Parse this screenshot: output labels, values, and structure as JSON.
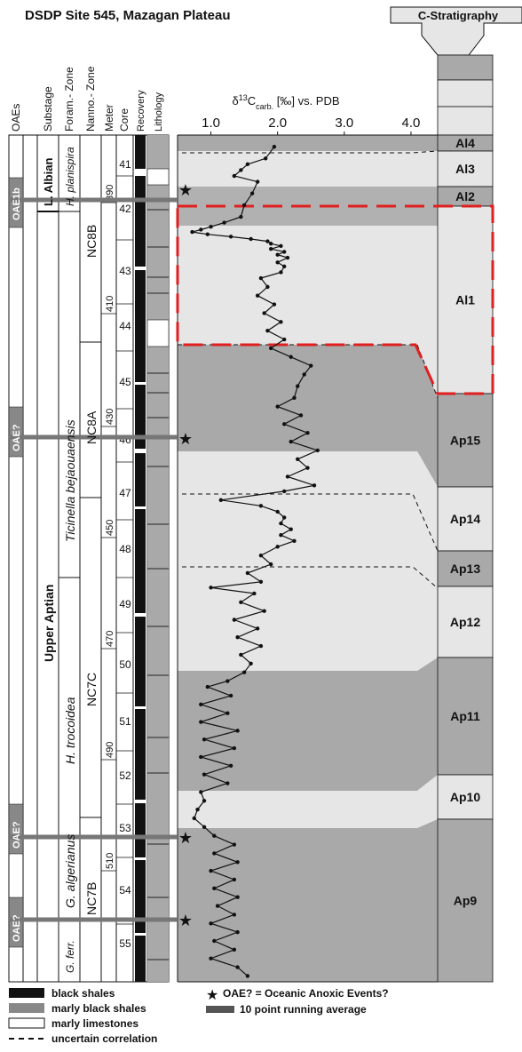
{
  "title": "DSDP Site 545, Mazagan Plateau",
  "strat_header": "C-Stratigraphy",
  "column_headers": {
    "oaes": "OAEs",
    "substage": "Substage",
    "foram": "Foram.- Zone",
    "nanno": "Nanno.- Zone",
    "meter": "Meter",
    "core": "Core",
    "recovery": "Recovery",
    "lithology": "Lithology"
  },
  "oae_labels": [
    "OAE1b",
    "OAE?",
    "OAE?",
    "OAE?"
  ],
  "substages": [
    "L. Albian",
    "Upper Aptian"
  ],
  "foram_zones": [
    "H. planispira",
    "Ticinella bejaouaensis",
    "H. trocoidea",
    "G. algerianus",
    "G. ferr."
  ],
  "nanno_zones": [
    "NC8B",
    "NC8A",
    "NC7C",
    "NC7B"
  ],
  "meters": [
    "390",
    "410",
    "430",
    "450",
    "470",
    "490",
    "510"
  ],
  "cores": [
    "41",
    "42",
    "43",
    "44",
    "45",
    "46",
    "47",
    "48",
    "49",
    "50",
    "51",
    "52",
    "53",
    "54",
    "55"
  ],
  "chart_data": {
    "type": "line",
    "xlabel_main": "δ",
    "xlabel_sup": "13",
    "xlabel_c": "C",
    "xlabel_sub": "carb.",
    "xlabel_unit": " [‰] vs. PDB",
    "xticks": [
      "1.0",
      "2.0",
      "3.0",
      "4.0"
    ],
    "xlim": [
      0.5,
      4.4
    ],
    "ylim": [
      375,
      520
    ],
    "series": [
      {
        "points": [
          [
            1.95,
            377
          ],
          [
            1.82,
            379
          ],
          [
            1.55,
            380
          ],
          [
            1.45,
            381
          ],
          [
            1.35,
            382
          ],
          [
            1.7,
            383
          ],
          [
            1.62,
            385
          ],
          [
            1.5,
            387
          ],
          [
            1.45,
            389
          ],
          [
            1.2,
            390
          ],
          [
            1.0,
            390.7
          ],
          [
            0.85,
            391.2
          ],
          [
            0.72,
            391.6
          ],
          [
            0.95,
            392
          ],
          [
            1.3,
            392.4
          ],
          [
            1.6,
            392.8
          ],
          [
            1.85,
            393.2
          ],
          [
            1.9,
            393.6
          ],
          [
            2.05,
            394
          ],
          [
            1.9,
            394.5
          ],
          [
            2.1,
            395
          ],
          [
            2.0,
            395.5
          ],
          [
            2.15,
            396
          ],
          [
            2.0,
            396.8
          ],
          [
            2.1,
            397.5
          ],
          [
            2.05,
            398.5
          ],
          [
            1.75,
            399.5
          ],
          [
            1.85,
            401
          ],
          [
            1.7,
            402.5
          ],
          [
            1.95,
            404
          ],
          [
            1.8,
            405.5
          ],
          [
            2.05,
            407
          ],
          [
            1.85,
            408.5
          ],
          [
            2.1,
            410
          ],
          [
            1.9,
            411.5
          ],
          [
            2.2,
            413
          ],
          [
            2.5,
            414.5
          ],
          [
            2.4,
            416
          ],
          [
            2.3,
            418
          ],
          [
            2.25,
            420
          ],
          [
            2.0,
            421.5
          ],
          [
            2.35,
            423
          ],
          [
            2.1,
            424.5
          ],
          [
            2.45,
            426
          ],
          [
            2.2,
            427.5
          ],
          [
            2.6,
            429
          ],
          [
            2.3,
            430.5
          ],
          [
            2.45,
            432
          ],
          [
            2.15,
            433.5
          ],
          [
            2.55,
            435
          ],
          [
            2.1,
            436
          ],
          [
            1.15,
            437.5
          ],
          [
            1.75,
            438.5
          ],
          [
            2.0,
            439.5
          ],
          [
            2.1,
            440.5
          ],
          [
            2.05,
            441.5
          ],
          [
            2.2,
            442.5
          ],
          [
            2.05,
            443.5
          ],
          [
            2.25,
            444.5
          ],
          [
            2.0,
            445.5
          ],
          [
            1.75,
            447
          ],
          [
            1.9,
            448.5
          ],
          [
            1.55,
            450
          ],
          [
            1.75,
            451.5
          ],
          [
            1.0,
            452.5
          ],
          [
            1.65,
            453.5
          ],
          [
            1.45,
            455
          ],
          [
            1.8,
            456.5
          ],
          [
            1.35,
            458
          ],
          [
            1.7,
            459.5
          ],
          [
            1.4,
            461
          ],
          [
            1.75,
            462.5
          ],
          [
            1.45,
            464
          ],
          [
            1.6,
            465.5
          ],
          [
            1.5,
            467
          ],
          [
            1.25,
            468.5
          ],
          [
            0.95,
            469.5
          ],
          [
            1.3,
            471
          ],
          [
            0.85,
            472.5
          ],
          [
            1.25,
            474
          ],
          [
            0.85,
            475.5
          ],
          [
            1.4,
            477
          ],
          [
            0.9,
            478.5
          ],
          [
            1.35,
            480
          ],
          [
            0.85,
            481.5
          ],
          [
            1.3,
            483
          ],
          [
            0.9,
            484.5
          ],
          [
            1.25,
            486
          ],
          [
            0.85,
            487.5
          ],
          [
            0.9,
            489
          ],
          [
            0.8,
            490.5
          ],
          [
            0.75,
            492
          ],
          [
            0.9,
            493.5
          ],
          [
            1.05,
            495
          ],
          [
            1.35,
            496.5
          ],
          [
            1.05,
            498
          ],
          [
            1.4,
            499.5
          ],
          [
            1.0,
            501
          ],
          [
            1.35,
            502.5
          ],
          [
            1.05,
            504
          ],
          [
            1.4,
            505.5
          ],
          [
            1.1,
            507
          ],
          [
            1.35,
            508.5
          ],
          [
            1.0,
            510
          ],
          [
            1.4,
            511.5
          ],
          [
            1.05,
            513
          ],
          [
            1.35,
            514.5
          ],
          [
            1.0,
            516
          ],
          [
            1.4,
            517.5
          ],
          [
            1.55,
            519
          ]
        ]
      }
    ]
  },
  "cstrat": [
    {
      "label": "Al4",
      "shade": "#a9a9a9"
    },
    {
      "label": "Al3",
      "shade": "#e6e6e6"
    },
    {
      "label": "Al2",
      "shade": "#a9a9a9"
    },
    {
      "label": "Al1",
      "shade": "#e6e6e6"
    },
    {
      "label": "Ap15",
      "shade": "#a9a9a9"
    },
    {
      "label": "Ap14",
      "shade": "#e6e6e6"
    },
    {
      "label": "Ap13",
      "shade": "#a9a9a9"
    },
    {
      "label": "Ap12",
      "shade": "#e6e6e6"
    },
    {
      "label": "Ap11",
      "shade": "#a9a9a9"
    },
    {
      "label": "Ap10",
      "shade": "#e6e6e6"
    },
    {
      "label": "Ap9",
      "shade": "#a9a9a9"
    }
  ],
  "legend": {
    "black_shales": "black shales",
    "marly_black_shales": "marly black shales",
    "marly_limestones": "marly limestones",
    "uncertain": "uncertain correlation",
    "oae": "OAE? = Oceanic Anoxic Events?",
    "running_avg": "10 point running average"
  },
  "colors": {
    "dark_band": "#a9a9a9",
    "light_band": "#e6e6e6",
    "highlight_box": "#e02020",
    "black": "#111111"
  }
}
